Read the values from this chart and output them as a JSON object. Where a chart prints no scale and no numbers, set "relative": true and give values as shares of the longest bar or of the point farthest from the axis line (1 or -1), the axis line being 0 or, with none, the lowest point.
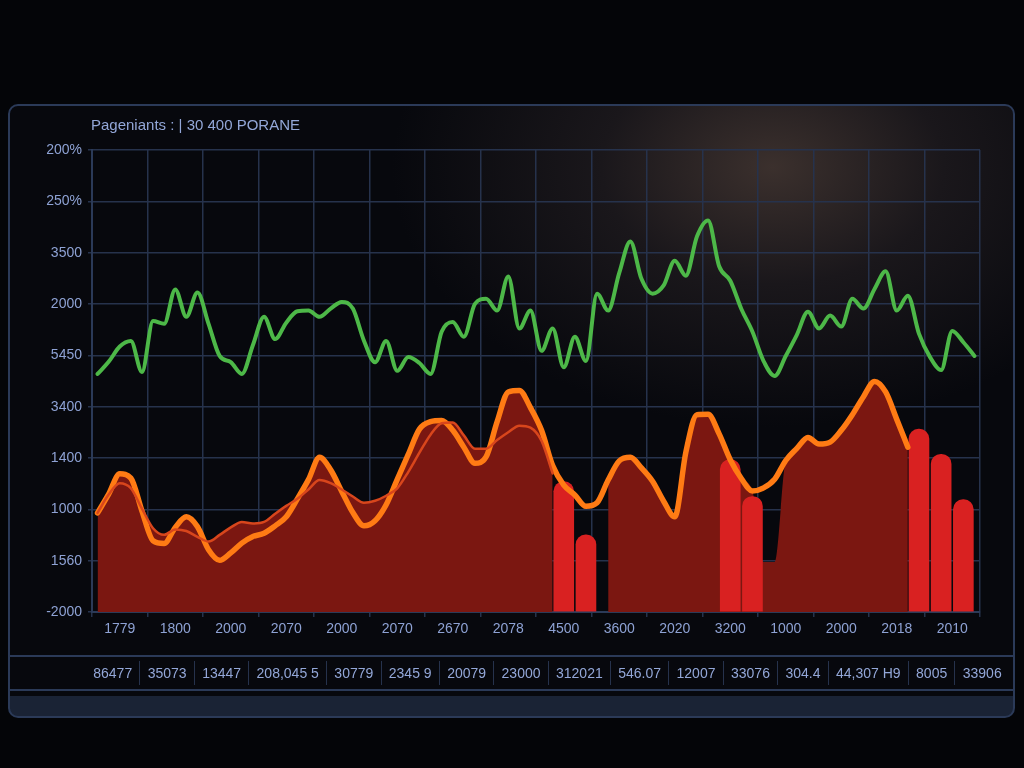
{
  "chart_data": {
    "type": "line",
    "title": "Pageniants : | 30 400 PORANE",
    "categories": [
      null,
      null,
      "1779",
      null,
      null,
      null,
      null,
      "1800",
      null,
      null,
      null,
      null,
      "2000",
      null,
      null,
      null,
      null,
      "2070",
      null,
      null,
      null,
      null,
      "2000",
      null,
      null,
      null,
      null,
      "2070",
      null,
      null,
      null,
      null,
      "2670",
      null,
      null,
      null,
      null,
      "2078",
      null,
      null,
      null,
      null,
      "4500",
      null,
      null,
      null,
      null,
      "3600",
      null,
      null,
      null,
      null,
      "2020",
      null,
      null,
      null,
      null,
      "3200",
      null,
      null,
      null,
      null,
      "1000",
      null,
      null,
      null,
      null,
      "2000",
      null,
      null,
      null,
      null,
      "2018",
      null,
      null,
      null,
      null,
      "2010",
      null,
      null
    ],
    "relative": true,
    "grid": true,
    "marker": "none",
    "series": [
      {
        "color": "#4db848",
        "values": [
          0.608,
          0.639,
          0.678,
          0.692,
          0.613,
          0.743,
          0.736,
          0.824,
          0.754,
          0.816,
          0.736,
          0.654,
          0.638,
          0.608,
          0.682,
          0.754,
          0.697,
          0.739,
          0.768,
          0.77,
          0.754,
          0.775,
          0.792,
          0.775,
          0.693,
          0.638,
          0.692,
          0.616,
          0.651,
          0.636,
          0.608,
          0.716,
          0.741,
          0.703,
          0.787,
          0.8,
          0.77,
          0.857,
          0.724,
          0.77,
          0.667,
          0.724,
          0.625,
          0.703,
          0.641,
          0.813,
          0.77,
          0.866,
          0.946,
          0.851,
          0.813,
          0.834,
          0.897,
          0.859,
          0.959,
          1,
          0.883,
          0.846,
          0.774,
          0.716,
          0.641,
          0.603,
          0.654,
          0.708,
          0.767,
          0.724,
          0.757,
          0.729,
          0.8,
          0.775,
          0.825,
          0.87,
          0.77,
          0.808,
          0.711,
          0.651,
          0.618,
          0.718,
          0.689,
          0.654
        ]
      },
      {
        "color": "#d8461c",
        "values": [
          0.253,
          0.3,
          0.329,
          0.316,
          0.264,
          0.214,
          0.197,
          0.211,
          0.207,
          0.192,
          0.18,
          0.197,
          0.216,
          0.23,
          0.226,
          0.23,
          0.251,
          0.271,
          0.289,
          0.313,
          0.337,
          0.329,
          0.313,
          0.295,
          0.279,
          0.284,
          0.297,
          0.316,
          0.358,
          0.407,
          0.453,
          0.482,
          0.484,
          0.451,
          0.417,
          0.417,
          0.439,
          0.459,
          0.476,
          0.471,
          0.437,
          0.354,
          null,
          null,
          null,
          null,
          null,
          null,
          null,
          null,
          null,
          null,
          null,
          null,
          null,
          null,
          null,
          null,
          null,
          null,
          null,
          null,
          null,
          null,
          null,
          null,
          null,
          null,
          null,
          null,
          null,
          null,
          null,
          null,
          null,
          null,
          null,
          null,
          null,
          null
        ]
      },
      {
        "color": "#ff7b14",
        "values": [
          0.253,
          0.301,
          0.353,
          0.342,
          0.258,
          0.182,
          0.175,
          0.216,
          0.243,
          0.218,
          0.159,
          0.132,
          0.151,
          0.176,
          0.193,
          0.201,
          0.22,
          0.243,
          0.289,
          0.338,
          0.395,
          0.363,
          0.308,
          0.254,
          0.22,
          0.233,
          0.274,
          0.339,
          0.403,
          0.467,
          0.486,
          0.489,
          0.464,
          0.421,
          0.38,
          0.396,
          0.486,
          0.562,
          0.566,
          0.522,
          0.464,
          0.374,
          0.324,
          0.299,
          0.27,
          0.279,
          0.337,
          0.386,
          0.395,
          0.368,
          0.334,
          0.283,
          0.243,
          0.408,
          0.504,
          0.505,
          0.455,
          0.389,
          0.341,
          0.309,
          0.317,
          0.339,
          0.387,
          0.418,
          0.446,
          0.429,
          0.434,
          0.464,
          0.504,
          0.55,
          0.589,
          0.562,
          0.492,
          0.421,
          null,
          null,
          null,
          null,
          null,
          null
        ]
      },
      {
        "type": "bar",
        "color": "#d92121",
        "values": [
          null,
          null,
          null,
          null,
          null,
          null,
          null,
          null,
          null,
          null,
          null,
          null,
          null,
          null,
          null,
          null,
          null,
          null,
          null,
          null,
          null,
          null,
          null,
          null,
          null,
          null,
          null,
          null,
          null,
          null,
          null,
          null,
          null,
          null,
          null,
          null,
          null,
          null,
          null,
          null,
          null,
          null,
          0.333,
          null,
          0.197,
          null,
          null,
          null,
          null,
          null,
          null,
          null,
          null,
          null,
          null,
          null,
          null,
          0.389,
          null,
          0.295,
          null,
          null,
          null,
          null,
          null,
          null,
          null,
          null,
          null,
          null,
          null,
          null,
          null,
          null,
          0.467,
          null,
          0.403,
          null,
          0.287,
          null
        ]
      },
      {
        "type": "area",
        "color": "#7b1711",
        "values": [
          0.253,
          0.301,
          0.353,
          0.342,
          0.264,
          0.214,
          0.197,
          0.216,
          0.243,
          0.218,
          0.18,
          0.197,
          0.216,
          0.23,
          0.226,
          0.23,
          0.251,
          0.271,
          0.289,
          0.338,
          0.395,
          0.363,
          0.313,
          0.295,
          0.279,
          0.284,
          0.297,
          0.339,
          0.403,
          0.467,
          0.486,
          0.489,
          0.484,
          0.451,
          0.417,
          0.417,
          0.486,
          0.562,
          0.566,
          0.522,
          0.464,
          0.374,
          null,
          null,
          null,
          null,
          0.337,
          0.386,
          0.395,
          0.368,
          0.334,
          0.283,
          0.243,
          0.408,
          0.504,
          0.505,
          0.455,
          0.389,
          0.341,
          0.309,
          0.128,
          0.128,
          0.387,
          0.418,
          0.446,
          0.429,
          0.434,
          0.464,
          0.504,
          0.55,
          0.589,
          0.562,
          0.492,
          0.421,
          null,
          null,
          null,
          null,
          null,
          null
        ]
      }
    ],
    "annotations": [
      "200%",
      "250%",
      "3500",
      "2000",
      "5450",
      "3400",
      "1400",
      "1000",
      "1560",
      "-2000",
      "86477",
      "35073",
      "13447",
      "208,045 5",
      "30779",
      "2345 9",
      "20079",
      "23000",
      "312021",
      "546.07",
      "12007",
      "33076",
      "304.4",
      "44,307 H9",
      "8005",
      "33906"
    ]
  }
}
